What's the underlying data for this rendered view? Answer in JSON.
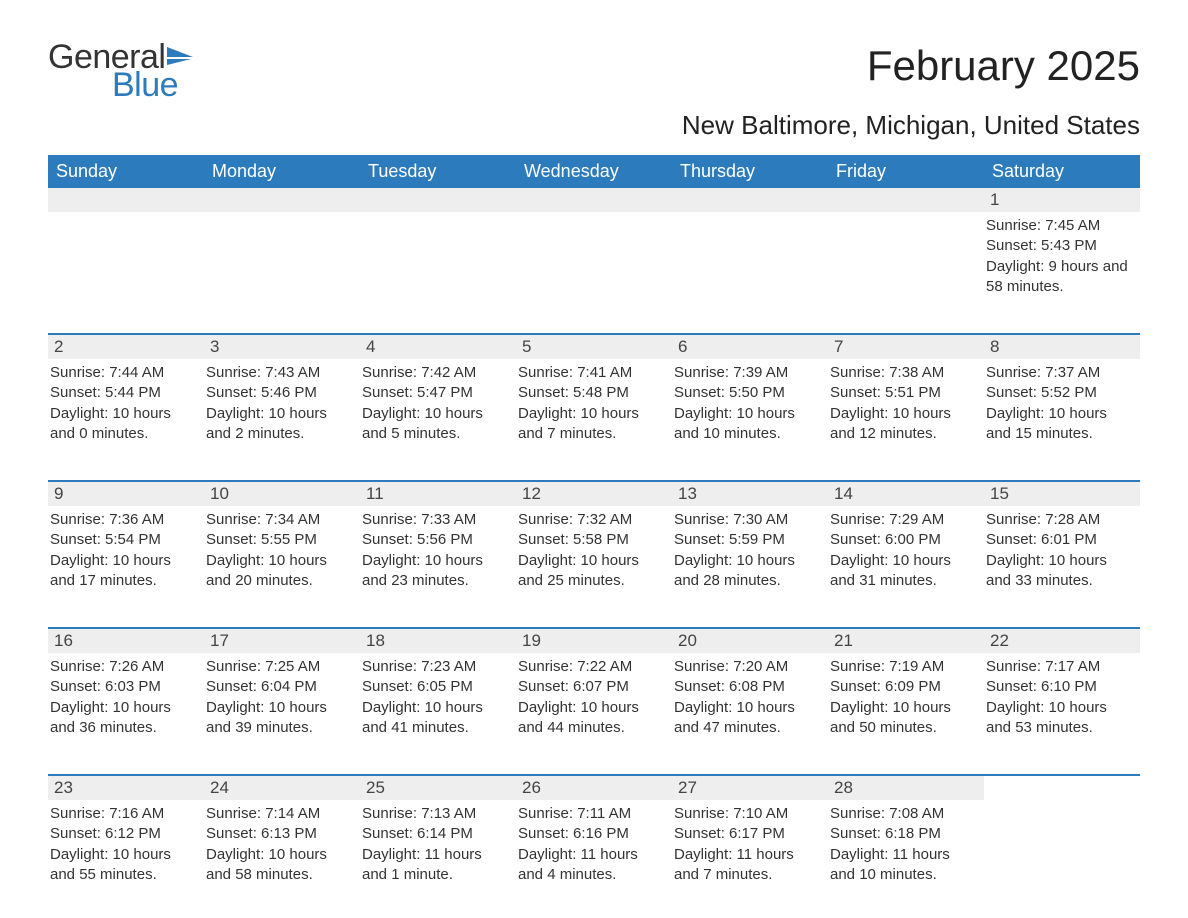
{
  "logo": {
    "word1": "General",
    "word2": "Blue"
  },
  "title": "February 2025",
  "location": "New Baltimore, Michigan, United States",
  "colors": {
    "header_bg": "#2b7bbd",
    "header_text": "#ffffff",
    "daynum_bg": "#eeeeee",
    "text": "#333333",
    "accent": "#2b7bbd",
    "background": "#ffffff"
  },
  "dayNames": [
    "Sunday",
    "Monday",
    "Tuesday",
    "Wednesday",
    "Thursday",
    "Friday",
    "Saturday"
  ],
  "weeks": [
    [
      null,
      null,
      null,
      null,
      null,
      null,
      {
        "num": "1",
        "sunrise": "Sunrise: 7:45 AM",
        "sunset": "Sunset: 5:43 PM",
        "daylight": "Daylight: 9 hours and 58 minutes."
      }
    ],
    [
      {
        "num": "2",
        "sunrise": "Sunrise: 7:44 AM",
        "sunset": "Sunset: 5:44 PM",
        "daylight": "Daylight: 10 hours and 0 minutes."
      },
      {
        "num": "3",
        "sunrise": "Sunrise: 7:43 AM",
        "sunset": "Sunset: 5:46 PM",
        "daylight": "Daylight: 10 hours and 2 minutes."
      },
      {
        "num": "4",
        "sunrise": "Sunrise: 7:42 AM",
        "sunset": "Sunset: 5:47 PM",
        "daylight": "Daylight: 10 hours and 5 minutes."
      },
      {
        "num": "5",
        "sunrise": "Sunrise: 7:41 AM",
        "sunset": "Sunset: 5:48 PM",
        "daylight": "Daylight: 10 hours and 7 minutes."
      },
      {
        "num": "6",
        "sunrise": "Sunrise: 7:39 AM",
        "sunset": "Sunset: 5:50 PM",
        "daylight": "Daylight: 10 hours and 10 minutes."
      },
      {
        "num": "7",
        "sunrise": "Sunrise: 7:38 AM",
        "sunset": "Sunset: 5:51 PM",
        "daylight": "Daylight: 10 hours and 12 minutes."
      },
      {
        "num": "8",
        "sunrise": "Sunrise: 7:37 AM",
        "sunset": "Sunset: 5:52 PM",
        "daylight": "Daylight: 10 hours and 15 minutes."
      }
    ],
    [
      {
        "num": "9",
        "sunrise": "Sunrise: 7:36 AM",
        "sunset": "Sunset: 5:54 PM",
        "daylight": "Daylight: 10 hours and 17 minutes."
      },
      {
        "num": "10",
        "sunrise": "Sunrise: 7:34 AM",
        "sunset": "Sunset: 5:55 PM",
        "daylight": "Daylight: 10 hours and 20 minutes."
      },
      {
        "num": "11",
        "sunrise": "Sunrise: 7:33 AM",
        "sunset": "Sunset: 5:56 PM",
        "daylight": "Daylight: 10 hours and 23 minutes."
      },
      {
        "num": "12",
        "sunrise": "Sunrise: 7:32 AM",
        "sunset": "Sunset: 5:58 PM",
        "daylight": "Daylight: 10 hours and 25 minutes."
      },
      {
        "num": "13",
        "sunrise": "Sunrise: 7:30 AM",
        "sunset": "Sunset: 5:59 PM",
        "daylight": "Daylight: 10 hours and 28 minutes."
      },
      {
        "num": "14",
        "sunrise": "Sunrise: 7:29 AM",
        "sunset": "Sunset: 6:00 PM",
        "daylight": "Daylight: 10 hours and 31 minutes."
      },
      {
        "num": "15",
        "sunrise": "Sunrise: 7:28 AM",
        "sunset": "Sunset: 6:01 PM",
        "daylight": "Daylight: 10 hours and 33 minutes."
      }
    ],
    [
      {
        "num": "16",
        "sunrise": "Sunrise: 7:26 AM",
        "sunset": "Sunset: 6:03 PM",
        "daylight": "Daylight: 10 hours and 36 minutes."
      },
      {
        "num": "17",
        "sunrise": "Sunrise: 7:25 AM",
        "sunset": "Sunset: 6:04 PM",
        "daylight": "Daylight: 10 hours and 39 minutes."
      },
      {
        "num": "18",
        "sunrise": "Sunrise: 7:23 AM",
        "sunset": "Sunset: 6:05 PM",
        "daylight": "Daylight: 10 hours and 41 minutes."
      },
      {
        "num": "19",
        "sunrise": "Sunrise: 7:22 AM",
        "sunset": "Sunset: 6:07 PM",
        "daylight": "Daylight: 10 hours and 44 minutes."
      },
      {
        "num": "20",
        "sunrise": "Sunrise: 7:20 AM",
        "sunset": "Sunset: 6:08 PM",
        "daylight": "Daylight: 10 hours and 47 minutes."
      },
      {
        "num": "21",
        "sunrise": "Sunrise: 7:19 AM",
        "sunset": "Sunset: 6:09 PM",
        "daylight": "Daylight: 10 hours and 50 minutes."
      },
      {
        "num": "22",
        "sunrise": "Sunrise: 7:17 AM",
        "sunset": "Sunset: 6:10 PM",
        "daylight": "Daylight: 10 hours and 53 minutes."
      }
    ],
    [
      {
        "num": "23",
        "sunrise": "Sunrise: 7:16 AM",
        "sunset": "Sunset: 6:12 PM",
        "daylight": "Daylight: 10 hours and 55 minutes."
      },
      {
        "num": "24",
        "sunrise": "Sunrise: 7:14 AM",
        "sunset": "Sunset: 6:13 PM",
        "daylight": "Daylight: 10 hours and 58 minutes."
      },
      {
        "num": "25",
        "sunrise": "Sunrise: 7:13 AM",
        "sunset": "Sunset: 6:14 PM",
        "daylight": "Daylight: 11 hours and 1 minute."
      },
      {
        "num": "26",
        "sunrise": "Sunrise: 7:11 AM",
        "sunset": "Sunset: 6:16 PM",
        "daylight": "Daylight: 11 hours and 4 minutes."
      },
      {
        "num": "27",
        "sunrise": "Sunrise: 7:10 AM",
        "sunset": "Sunset: 6:17 PM",
        "daylight": "Daylight: 11 hours and 7 minutes."
      },
      {
        "num": "28",
        "sunrise": "Sunrise: 7:08 AM",
        "sunset": "Sunset: 6:18 PM",
        "daylight": "Daylight: 11 hours and 10 minutes."
      },
      null
    ]
  ]
}
